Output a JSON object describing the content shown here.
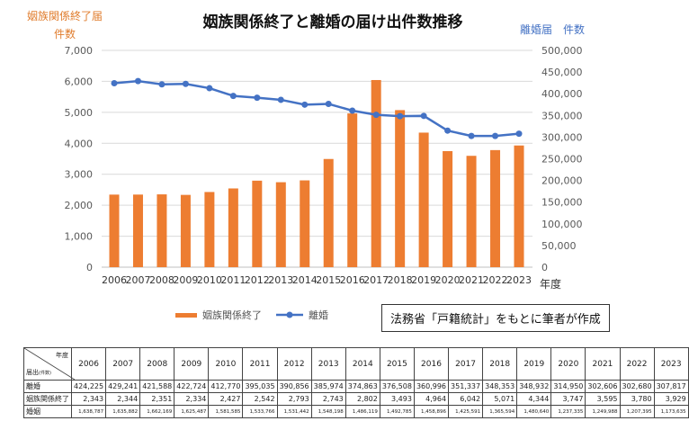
{
  "chart_data": {
    "type": "bar+line",
    "title": "姻族関係終了と離婚の届け出件数推移",
    "ylabel_left": [
      "姻族関係終了届",
      "件数"
    ],
    "ylabel_right": "離婚届　件数",
    "xlabel": "年度",
    "ylim_left": [
      0,
      7000
    ],
    "ylim_right": [
      0,
      500000
    ],
    "yticks_left": [
      "0",
      "1,000",
      "2,000",
      "3,000",
      "4,000",
      "5,000",
      "6,000",
      "7,000"
    ],
    "yticks_right": [
      "0",
      "50,000",
      "100,000",
      "150,000",
      "200,000",
      "250,000",
      "300,000",
      "350,000",
      "400,000",
      "450,000",
      "500,000"
    ],
    "grid": true,
    "legend_position": "bottom",
    "categories": [
      "2006",
      "2007",
      "2008",
      "2009",
      "2010",
      "2011",
      "2012",
      "2013",
      "2014",
      "2015",
      "2016",
      "2017",
      "2018",
      "2019",
      "2020",
      "2021",
      "2022",
      "2023"
    ],
    "series": [
      {
        "name": "姻族関係終了",
        "type": "bar",
        "axis": "left",
        "color": "#ed7d31",
        "values": [
          2343,
          2344,
          2351,
          2334,
          2427,
          2542,
          2793,
          2743,
          2802,
          3493,
          4964,
          6042,
          5071,
          4344,
          3747,
          3595,
          3780,
          3929
        ]
      },
      {
        "name": "離婚",
        "type": "line",
        "axis": "right",
        "color": "#4472c4",
        "values": [
          424225,
          429241,
          421588,
          422724,
          412770,
          395035,
          390856,
          385974,
          374863,
          376508,
          360996,
          351337,
          348353,
          348932,
          314950,
          302606,
          302680,
          307817
        ]
      }
    ]
  },
  "source_note": "法務省「戸籍統計」をもとに筆者が作成",
  "table": {
    "corner_top": "年度",
    "corner_bottom": "届出",
    "corner_unit": "(件数)",
    "years": [
      "2006",
      "2007",
      "2008",
      "2009",
      "2010",
      "2011",
      "2012",
      "2013",
      "2014",
      "2015",
      "2016",
      "2017",
      "2018",
      "2019",
      "2020",
      "2021",
      "2022",
      "2023"
    ],
    "rows": [
      {
        "label": "離婚",
        "values": [
          "424,225",
          "429,241",
          "421,588",
          "422,724",
          "412,770",
          "395,035",
          "390,856",
          "385,974",
          "374,863",
          "376,508",
          "360,996",
          "351,337",
          "348,353",
          "348,932",
          "314,950",
          "302,606",
          "302,680",
          "307,817"
        ]
      },
      {
        "label": "姻族関係終了",
        "values": [
          "2,343",
          "2,344",
          "2,351",
          "2,334",
          "2,427",
          "2,542",
          "2,793",
          "2,743",
          "2,802",
          "3,493",
          "4,964",
          "6,042",
          "5,071",
          "4,344",
          "3,747",
          "3,595",
          "3,780",
          "3,929"
        ]
      },
      {
        "label": "婚姻",
        "values": [
          "1,638,787",
          "1,635,882",
          "1,662,169",
          "1,625,487",
          "1,581,585",
          "1,533,766",
          "1,531,442",
          "1,548,198",
          "1,486,119",
          "1,492,785",
          "1,458,896",
          "1,425,591",
          "1,365,594",
          "1,480,640",
          "1,237,335",
          "1,249,988",
          "1,207,395",
          "1,173,635"
        ]
      }
    ]
  }
}
